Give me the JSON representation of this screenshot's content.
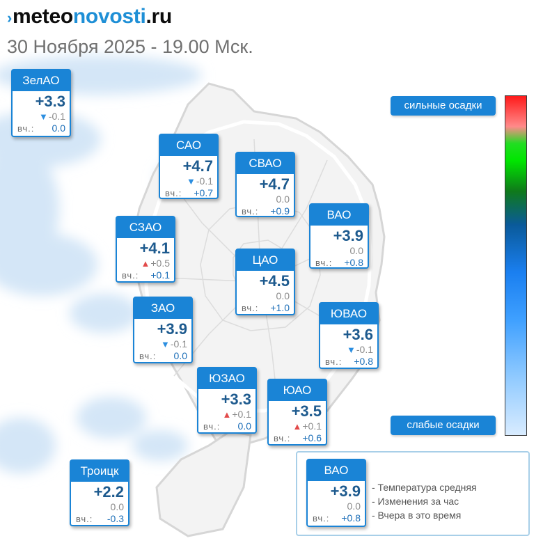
{
  "header": {
    "logo_mark": "›",
    "logo_prefix": "meteo",
    "logo_brand": "novosti",
    "logo_suffix": ".ru",
    "subtitle": "30 Ноября 2025 - 19.00 Мск."
  },
  "labels": {
    "yesterday_prefix": "вч.:"
  },
  "colors": {
    "accent": "#1a84d6",
    "temp_text": "#1d5a8e",
    "arrow_down": "#2b8ee0",
    "arrow_up": "#e24a4a",
    "precip_light": "#dbeaf8"
  },
  "districts": [
    {
      "name": "ЗелАО",
      "temp": "+3.3",
      "trend": "down",
      "delta": "-0.1",
      "yesterday": "0.0"
    },
    {
      "name": "САО",
      "temp": "+4.7",
      "trend": "down",
      "delta": "-0.1",
      "yesterday": "+0.7"
    },
    {
      "name": "СВАО",
      "temp": "+4.7",
      "trend": "none",
      "delta": "0.0",
      "yesterday": "+0.9"
    },
    {
      "name": "ВАО",
      "temp": "+3.9",
      "trend": "none",
      "delta": "0.0",
      "yesterday": "+0.8"
    },
    {
      "name": "СЗАО",
      "temp": "+4.1",
      "trend": "up",
      "delta": "+0.5",
      "yesterday": "+0.1"
    },
    {
      "name": "ЦАО",
      "temp": "+4.5",
      "trend": "none",
      "delta": "0.0",
      "yesterday": "+1.0"
    },
    {
      "name": "ЗАО",
      "temp": "+3.9",
      "trend": "down",
      "delta": "-0.1",
      "yesterday": "0.0"
    },
    {
      "name": "ЮВАО",
      "temp": "+3.6",
      "trend": "down",
      "delta": "-0.1",
      "yesterday": "+0.8"
    },
    {
      "name": "ЮЗАО",
      "temp": "+3.3",
      "trend": "up",
      "delta": "+0.1",
      "yesterday": "0.0"
    },
    {
      "name": "ЮАО",
      "temp": "+3.5",
      "trend": "up",
      "delta": "+0.1",
      "yesterday": "+0.6"
    },
    {
      "name": "Троицк",
      "temp": "+2.2",
      "trend": "none",
      "delta": "0.0",
      "yesterday": "-0.3"
    }
  ],
  "precip_scale": {
    "top_label": "сильные осадки",
    "bottom_label": "слабые осадки"
  },
  "legend": {
    "example": {
      "name": "ВАО",
      "temp": "+3.9",
      "trend": "none",
      "delta": "0.0",
      "yesterday": "+0.8"
    },
    "lines": [
      "- Температура средняя",
      "- Изменения за час",
      "- Вчера в это время"
    ]
  }
}
